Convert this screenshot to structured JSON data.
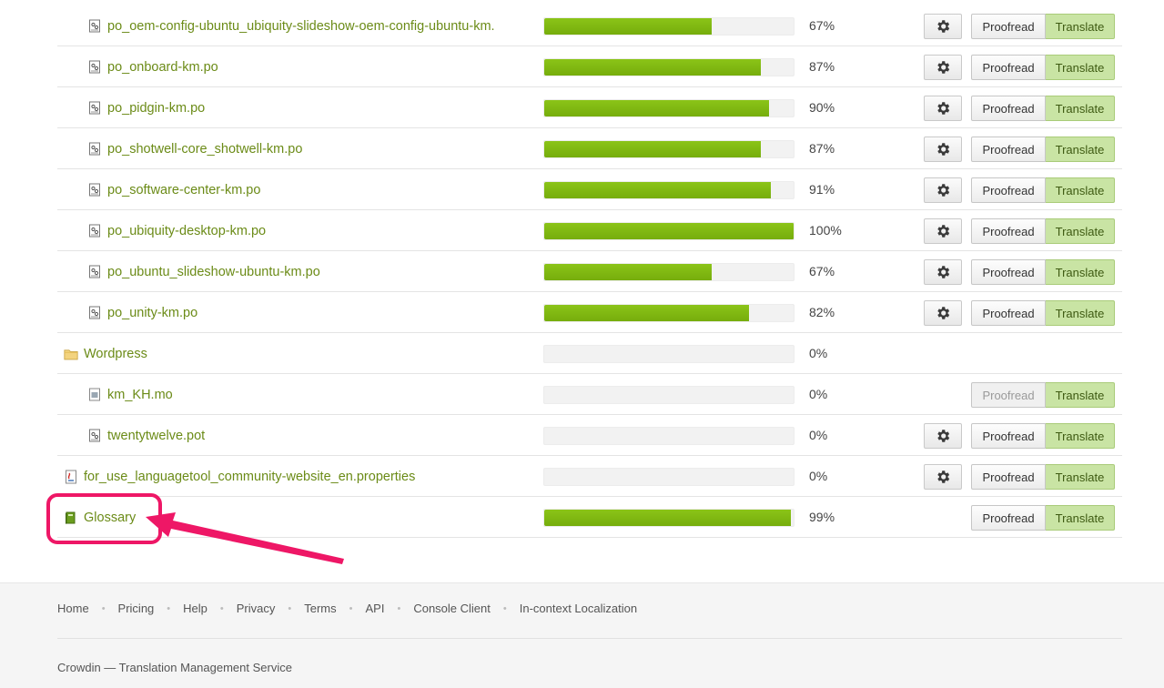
{
  "files": [
    {
      "name": "po_oem-config-ubuntu_ubiquity-slideshow-oem-config-ubuntu-km.",
      "progress": 67,
      "percent_label": "67%",
      "type": "po",
      "level": "nested",
      "has_settings": true,
      "proofread_enabled": true
    },
    {
      "name": "po_onboard-km.po",
      "progress": 87,
      "percent_label": "87%",
      "type": "po",
      "level": "nested",
      "has_settings": true,
      "proofread_enabled": true
    },
    {
      "name": "po_pidgin-km.po",
      "progress": 90,
      "percent_label": "90%",
      "type": "po",
      "level": "nested",
      "has_settings": true,
      "proofread_enabled": true
    },
    {
      "name": "po_shotwell-core_shotwell-km.po",
      "progress": 87,
      "percent_label": "87%",
      "type": "po",
      "level": "nested",
      "has_settings": true,
      "proofread_enabled": true
    },
    {
      "name": "po_software-center-km.po",
      "progress": 91,
      "percent_label": "91%",
      "type": "po",
      "level": "nested",
      "has_settings": true,
      "proofread_enabled": true
    },
    {
      "name": "po_ubiquity-desktop-km.po",
      "progress": 100,
      "percent_label": "100%",
      "type": "po",
      "level": "nested",
      "has_settings": true,
      "proofread_enabled": true
    },
    {
      "name": "po_ubuntu_slideshow-ubuntu-km.po",
      "progress": 67,
      "percent_label": "67%",
      "type": "po",
      "level": "nested",
      "has_settings": true,
      "proofread_enabled": true
    },
    {
      "name": "po_unity-km.po",
      "progress": 82,
      "percent_label": "82%",
      "type": "po",
      "level": "nested",
      "has_settings": true,
      "proofread_enabled": true
    },
    {
      "name": "Wordpress",
      "progress": 0,
      "percent_label": "0%",
      "type": "folder",
      "level": "top",
      "has_settings": false,
      "has_actions": false
    },
    {
      "name": "km_KH.mo",
      "progress": 0,
      "percent_label": "0%",
      "type": "mo",
      "level": "nested",
      "has_settings": false,
      "proofread_enabled": false
    },
    {
      "name": "twentytwelve.pot",
      "progress": 0,
      "percent_label": "0%",
      "type": "po",
      "level": "nested",
      "has_settings": true,
      "proofread_enabled": true
    },
    {
      "name": "for_use_languagetool_community-website_en.properties",
      "progress": 0,
      "percent_label": "0%",
      "type": "properties",
      "level": "top",
      "has_settings": true,
      "proofread_enabled": true
    },
    {
      "name": "Glossary",
      "progress": 99,
      "percent_label": "99%",
      "type": "glossary",
      "level": "top",
      "has_settings": false,
      "proofread_enabled": true
    }
  ],
  "buttons": {
    "proofread": "Proofread",
    "translate": "Translate"
  },
  "footer": {
    "links": [
      "Home",
      "Pricing",
      "Help",
      "Privacy",
      "Terms",
      "API",
      "Console Client",
      "In-context Localization"
    ],
    "separator": "•",
    "copyright": "Crowdin — Translation Management Service"
  },
  "colors": {
    "link": "#6b8b17",
    "progress": "#80b812",
    "translate_bg": "#c9e4a4",
    "highlight": "#ee1766"
  },
  "annotation": {
    "target": "Glossary",
    "style": "pink rounded box with arrow"
  }
}
